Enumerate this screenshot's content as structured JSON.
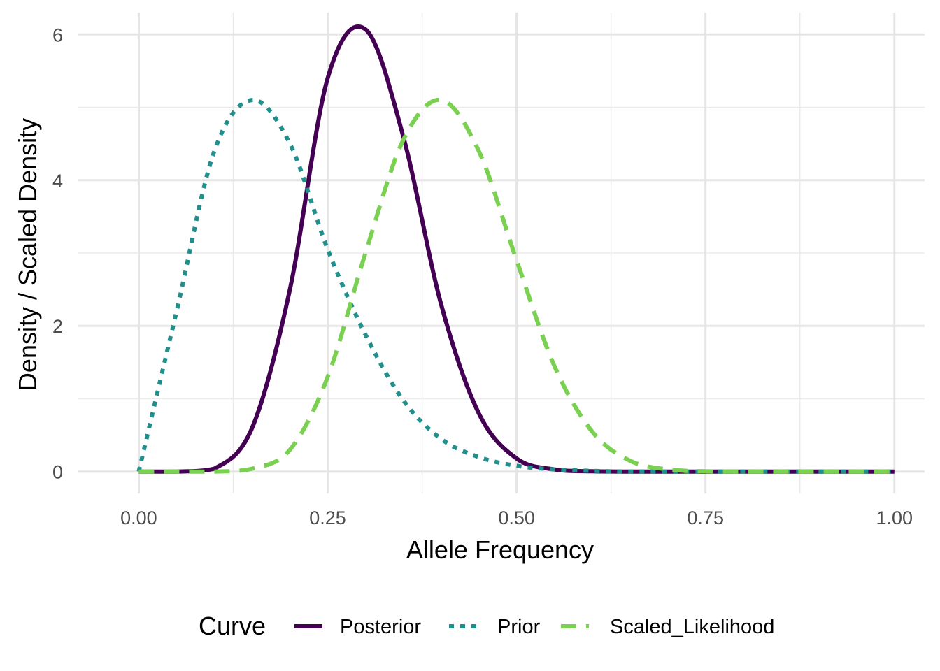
{
  "chart_data": {
    "type": "line",
    "title": "",
    "xlabel": "Allele Frequency",
    "ylabel": "Density / Scaled Density",
    "xlim": [
      -0.08,
      1.04
    ],
    "ylim": [
      -0.3,
      6.3
    ],
    "x_ticks": [
      0,
      0.25,
      0.5,
      0.75,
      1
    ],
    "x_tick_labels": [
      "0.00",
      "0.25",
      "0.50",
      "0.75",
      "1.00"
    ],
    "y_ticks": [
      0,
      2,
      4,
      6
    ],
    "y_tick_labels": [
      "0",
      "2",
      "4",
      "6"
    ],
    "grid": true,
    "legend": {
      "title": "Curve",
      "position": "bottom"
    },
    "x": [
      0,
      0.05,
      0.1,
      0.15,
      0.2,
      0.25,
      0.3,
      0.35,
      0.4,
      0.45,
      0.5,
      0.55,
      0.6,
      0.65,
      0.7,
      0.75,
      0.8,
      0.85,
      0.9,
      0.95,
      1
    ],
    "series": [
      {
        "name": "Posterior",
        "color": "#440154",
        "dash": "solid",
        "values": [
          0,
          0,
          0.04,
          0.6,
          2.5,
          5.4,
          6.07,
          4.6,
          2.3,
          0.8,
          0.18,
          0.03,
          0.004,
          0,
          0,
          0,
          0,
          0,
          0,
          0,
          0
        ]
      },
      {
        "name": "Prior",
        "color": "#21908C",
        "dash": "dotted",
        "values": [
          0,
          2.2,
          4.4,
          5.1,
          4.5,
          3.05,
          1.88,
          0.98,
          0.45,
          0.2,
          0.08,
          0.03,
          0.01,
          0,
          0,
          0,
          0,
          0,
          0,
          0,
          0
        ]
      },
      {
        "name": "Scaled_Likelihood",
        "color": "#7AD151",
        "dash": "dashed",
        "values": [
          0,
          0,
          0,
          0.04,
          0.3,
          1.3,
          3.0,
          4.55,
          5.1,
          4.4,
          2.9,
          1.45,
          0.55,
          0.15,
          0.03,
          0.005,
          0,
          0,
          0,
          0,
          0
        ]
      }
    ]
  }
}
